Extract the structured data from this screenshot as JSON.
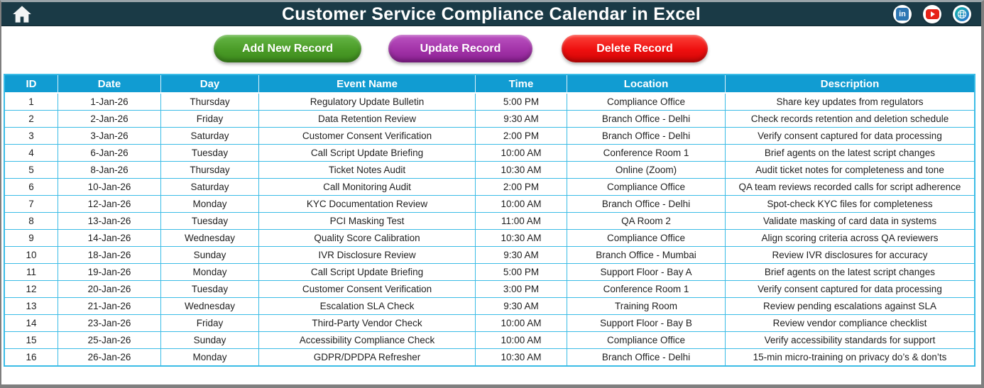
{
  "header": {
    "title": "Customer Service Compliance Calendar in Excel",
    "social": [
      {
        "name": "linkedin",
        "label": "in"
      },
      {
        "name": "youtube"
      },
      {
        "name": "website"
      }
    ]
  },
  "toolbar": {
    "buttons": [
      {
        "label": "Add New Record",
        "color": "#4a9b27"
      },
      {
        "label": "Update Record",
        "color": "#a233a8"
      },
      {
        "label": "Delete Record",
        "color": "#ee0f0f"
      }
    ]
  },
  "table": {
    "columns": [
      "ID",
      "Date",
      "Day",
      "Event Name",
      "Time",
      "Location",
      "Description"
    ],
    "rows": [
      [
        "1",
        "1-Jan-26",
        "Thursday",
        "Regulatory Update Bulletin",
        "5:00 PM",
        "Compliance Office",
        "Share key updates from regulators"
      ],
      [
        "2",
        "2-Jan-26",
        "Friday",
        "Data Retention Review",
        "9:30 AM",
        "Branch Office - Delhi",
        "Check records retention and deletion schedule"
      ],
      [
        "3",
        "3-Jan-26",
        "Saturday",
        "Customer Consent Verification",
        "2:00 PM",
        "Branch Office - Delhi",
        "Verify consent captured for data processing"
      ],
      [
        "4",
        "6-Jan-26",
        "Tuesday",
        "Call Script Update Briefing",
        "10:00 AM",
        "Conference Room 1",
        "Brief agents on the latest script changes"
      ],
      [
        "5",
        "8-Jan-26",
        "Thursday",
        "Ticket Notes Audit",
        "10:30 AM",
        "Online (Zoom)",
        "Audit ticket notes for completeness and tone"
      ],
      [
        "6",
        "10-Jan-26",
        "Saturday",
        "Call Monitoring Audit",
        "2:00 PM",
        "Compliance Office",
        "QA team reviews recorded calls for script adherence"
      ],
      [
        "7",
        "12-Jan-26",
        "Monday",
        "KYC Documentation Review",
        "10:00 AM",
        "Branch Office - Delhi",
        "Spot-check KYC files for completeness"
      ],
      [
        "8",
        "13-Jan-26",
        "Tuesday",
        "PCI Masking Test",
        "11:00 AM",
        "QA Room 2",
        "Validate masking of card data in systems"
      ],
      [
        "9",
        "14-Jan-26",
        "Wednesday",
        "Quality Score Calibration",
        "10:30 AM",
        "Compliance Office",
        "Align scoring criteria across QA reviewers"
      ],
      [
        "10",
        "18-Jan-26",
        "Sunday",
        "IVR Disclosure Review",
        "9:30 AM",
        "Branch Office - Mumbai",
        "Review IVR disclosures for accuracy"
      ],
      [
        "11",
        "19-Jan-26",
        "Monday",
        "Call Script Update Briefing",
        "5:00 PM",
        "Support Floor - Bay A",
        "Brief agents on the latest script changes"
      ],
      [
        "12",
        "20-Jan-26",
        "Tuesday",
        "Customer Consent Verification",
        "3:00 PM",
        "Conference Room 1",
        "Verify consent captured for data processing"
      ],
      [
        "13",
        "21-Jan-26",
        "Wednesday",
        "Escalation SLA Check",
        "9:30 AM",
        "Training Room",
        "Review pending escalations against SLA"
      ],
      [
        "14",
        "23-Jan-26",
        "Friday",
        "Third-Party Vendor Check",
        "10:00 AM",
        "Support Floor - Bay B",
        "Review vendor compliance checklist"
      ],
      [
        "15",
        "25-Jan-26",
        "Sunday",
        "Accessibility Compliance Check",
        "10:00 AM",
        "Compliance Office",
        "Verify accessibility standards for support"
      ],
      [
        "16",
        "26-Jan-26",
        "Monday",
        "GDPR/DPDPA Refresher",
        "10:30 AM",
        "Branch Office - Delhi",
        "15-min micro-training on privacy do’s & don’ts"
      ]
    ]
  },
  "colors": {
    "header_bg": "#1a3a46",
    "page_border": "#7f7f7f",
    "table_header_bg": "#119cd2",
    "grid": "#3bbce6",
    "text": "#1f1f1f",
    "btn_green": "#4a9b27",
    "btn_green_light": "#66b747",
    "btn_green_dark": "#3c8a1c",
    "btn_purple": "#a233a8",
    "btn_purple_light": "#bb53c1",
    "btn_purple_dark": "#891f91",
    "btn_red": "#ee0f0f",
    "btn_red_light": "#fc423a",
    "btn_red_dark": "#cf0606",
    "linkedin_blue": "#2d76b3",
    "youtube_red": "#e62117",
    "globe_teal": "#12b7a8",
    "globe_blue": "#2f6fd0"
  }
}
